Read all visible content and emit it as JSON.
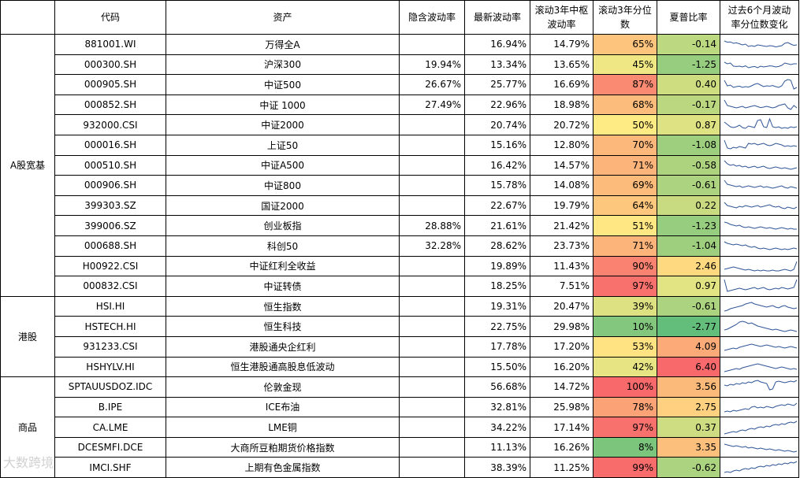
{
  "headers": {
    "group": "",
    "code": "代码",
    "name": "资产",
    "implied_vol": "隐含波动率",
    "latest_vol": "最新波动率",
    "median_vol": "滚动3年中枢波动率",
    "pct": "滚动3年分位数",
    "sharpe": "夏普比率",
    "trend": "过去6个月波动率分位数变化"
  },
  "groups": [
    {
      "name": "A股宽基",
      "rows": [
        {
          "code": "881001.WI",
          "name": "万得全A",
          "implied_vol": "",
          "latest_vol": "16.94%",
          "median_vol": "14.79%",
          "pct": "65%",
          "pct_value": 65,
          "sharpe": "-0.14",
          "sharpe_value": -0.14,
          "trend": [
            0.7,
            0.62,
            0.64,
            0.55,
            0.58,
            0.52,
            0.45,
            0.5,
            0.35,
            0.4,
            0.35,
            0.45,
            0.42,
            0.38,
            0.35,
            0.4,
            0.38,
            0.32,
            0.36,
            0.4,
            0.55,
            0.6,
            0.5,
            0.42,
            0.45
          ]
        },
        {
          "code": "000300.SH",
          "name": "沪深300",
          "implied_vol": "19.94%",
          "latest_vol": "13.34%",
          "median_vol": "13.65%",
          "pct": "45%",
          "pct_value": 45,
          "sharpe": "-1.25",
          "sharpe_value": -1.25,
          "trend": [
            0.65,
            0.55,
            0.6,
            0.4,
            0.38,
            0.4,
            0.35,
            0.42,
            0.3,
            0.35,
            0.38,
            0.3,
            0.4,
            0.35,
            0.38,
            0.42,
            0.4,
            0.35,
            0.38,
            0.45,
            0.6,
            0.55,
            0.5,
            0.55,
            0.55
          ]
        },
        {
          "code": "000905.SH",
          "name": "中证500",
          "implied_vol": "26.67%",
          "latest_vol": "25.77%",
          "median_vol": "16.69%",
          "pct": "87%",
          "pct_value": 87,
          "sharpe": "0.40",
          "sharpe_value": 0.4,
          "trend": [
            0.75,
            0.4,
            0.45,
            0.3,
            0.35,
            0.38,
            0.3,
            0.35,
            0.32,
            0.4,
            0.5,
            0.55,
            0.45,
            0.35,
            0.4,
            0.38,
            0.42,
            0.35,
            0.3,
            0.4,
            0.7,
            0.8,
            0.75,
            0.2,
            0.3
          ]
        },
        {
          "code": "000852.SH",
          "name": "中证 1000",
          "implied_vol": "27.49%",
          "latest_vol": "22.96%",
          "median_vol": "18.98%",
          "pct": "68%",
          "pct_value": 68,
          "sharpe": "-0.17",
          "sharpe_value": -0.17,
          "trend": [
            0.8,
            0.45,
            0.4,
            0.35,
            0.3,
            0.35,
            0.4,
            0.3,
            0.35,
            0.4,
            0.45,
            0.38,
            0.32,
            0.35,
            0.4,
            0.35,
            0.3,
            0.35,
            0.45,
            0.5,
            0.55,
            0.3,
            0.2,
            0.45,
            0.3
          ]
        },
        {
          "code": "932000.CSI",
          "name": "中证2000",
          "implied_vol": "",
          "latest_vol": "20.74%",
          "median_vol": "20.72%",
          "pct": "50%",
          "pct_value": 50,
          "sharpe": "0.87",
          "sharpe_value": 0.87,
          "trend": [
            0.7,
            0.55,
            0.4,
            0.35,
            0.4,
            0.5,
            0.35,
            0.3,
            0.45,
            0.4,
            0.35,
            0.8,
            0.85,
            0.4,
            0.35,
            0.9,
            0.4,
            0.35,
            0.4,
            0.3,
            0.35,
            0.3,
            0.4,
            0.35,
            0.4
          ]
        },
        {
          "code": "000016.SH",
          "name": "上证50",
          "implied_vol": "",
          "latest_vol": "15.16%",
          "median_vol": "12.80%",
          "pct": "70%",
          "pct_value": 70,
          "sharpe": "-1.08",
          "sharpe_value": -1.08,
          "trend": [
            0.8,
            0.3,
            0.25,
            0.35,
            0.3,
            0.4,
            0.35,
            0.3,
            0.6,
            0.55,
            0.6,
            0.5,
            0.55,
            0.6,
            0.5,
            0.45,
            0.5,
            0.6,
            0.55,
            0.5,
            0.4,
            0.45,
            0.4,
            0.45,
            0.4
          ]
        },
        {
          "code": "000510.SH",
          "name": "中证A500",
          "implied_vol": "",
          "latest_vol": "16.42%",
          "median_vol": "14.57%",
          "pct": "71%",
          "pct_value": 71,
          "sharpe": "-0.58",
          "sharpe_value": -0.58,
          "trend": [
            0.8,
            0.6,
            0.5,
            0.55,
            0.45,
            0.5,
            0.4,
            0.45,
            0.35,
            0.4,
            0.45,
            0.35,
            0.4,
            0.45,
            0.35,
            0.3,
            0.35,
            0.4,
            0.35,
            0.3,
            0.35,
            0.3,
            0.25,
            0.3,
            0.35
          ]
        },
        {
          "code": "000906.SH",
          "name": "中证800",
          "implied_vol": "",
          "latest_vol": "15.78%",
          "median_vol": "14.08%",
          "pct": "69%",
          "pct_value": 69,
          "sharpe": "-0.61",
          "sharpe_value": -0.61,
          "trend": [
            0.8,
            0.55,
            0.5,
            0.45,
            0.4,
            0.45,
            0.35,
            0.4,
            0.45,
            0.4,
            0.35,
            0.4,
            0.45,
            0.35,
            0.4,
            0.35,
            0.3,
            0.35,
            0.4,
            0.45,
            0.35,
            0.3,
            0.4,
            0.35,
            0.3
          ]
        },
        {
          "code": "399303.SZ",
          "name": "国证2000",
          "implied_vol": "",
          "latest_vol": "22.67%",
          "median_vol": "19.79%",
          "pct": "64%",
          "pct_value": 64,
          "sharpe": "0.22",
          "sharpe_value": 0.22,
          "trend": [
            0.7,
            0.5,
            0.45,
            0.4,
            0.35,
            0.45,
            0.4,
            0.5,
            0.45,
            0.4,
            0.45,
            0.5,
            0.4,
            0.45,
            0.5,
            0.55,
            0.45,
            0.4,
            0.45,
            0.35,
            0.3,
            0.4,
            0.35,
            0.3,
            0.4
          ]
        },
        {
          "code": "399006.SZ",
          "name": "创业板指",
          "implied_vol": "28.88%",
          "latest_vol": "21.61%",
          "median_vol": "21.42%",
          "pct": "51%",
          "pct_value": 51,
          "sharpe": "-1.23",
          "sharpe_value": -1.23,
          "trend": [
            0.75,
            0.7,
            0.6,
            0.55,
            0.5,
            0.55,
            0.45,
            0.4,
            0.45,
            0.4,
            0.35,
            0.4,
            0.45,
            0.4,
            0.35,
            0.4,
            0.35,
            0.3,
            0.35,
            0.4,
            0.35,
            0.3,
            0.35,
            0.3,
            0.3
          ]
        },
        {
          "code": "000688.SH",
          "name": "科创50",
          "implied_vol": "32.28%",
          "latest_vol": "28.62%",
          "median_vol": "23.73%",
          "pct": "71%",
          "pct_value": 71,
          "sharpe": "-1.04",
          "sharpe_value": -1.04,
          "trend": [
            0.75,
            0.65,
            0.6,
            0.55,
            0.6,
            0.55,
            0.5,
            0.55,
            0.45,
            0.4,
            0.45,
            0.35,
            0.3,
            0.35,
            0.3,
            0.25,
            0.3,
            0.35,
            0.3,
            0.25,
            0.3,
            0.25,
            0.3,
            0.35,
            0.3
          ]
        },
        {
          "code": "H00922.CSI",
          "name": "中证红利全收益",
          "implied_vol": "",
          "latest_vol": "19.89%",
          "median_vol": "11.43%",
          "pct": "90%",
          "pct_value": 90,
          "sharpe": "2.46",
          "sharpe_value": 2.46,
          "trend": [
            0.3,
            0.35,
            0.4,
            0.45,
            0.4,
            0.35,
            0.3,
            0.25,
            0.3,
            0.25,
            0.2,
            0.25,
            0.2,
            0.25,
            0.2,
            0.2,
            0.25,
            0.2,
            0.2,
            0.25,
            0.3,
            0.25,
            0.2,
            0.3,
            0.8
          ]
        },
        {
          "code": "000832.CSI",
          "name": "中证转债",
          "implied_vol": "",
          "latest_vol": "18.25%",
          "median_vol": "7.51%",
          "pct": "97%",
          "pct_value": 97,
          "sharpe": "0.97",
          "sharpe_value": 0.97,
          "trend": [
            0.9,
            0.15,
            0.2,
            0.25,
            0.3,
            0.35,
            0.3,
            0.25,
            0.3,
            0.35,
            0.4,
            0.3,
            0.35,
            0.4,
            0.3,
            0.25,
            0.3,
            0.35,
            0.3,
            0.4,
            0.35,
            0.3,
            0.35,
            0.4,
            0.9
          ]
        }
      ]
    },
    {
      "name": "港股",
      "rows": [
        {
          "code": "HSI.HI",
          "name": "恒生指数",
          "implied_vol": "",
          "latest_vol": "19.31%",
          "median_vol": "20.47%",
          "pct": "39%",
          "pct_value": 39,
          "sharpe": "-0.61",
          "sharpe_value": -0.61,
          "trend": [
            0.2,
            0.25,
            0.35,
            0.4,
            0.45,
            0.5,
            0.55,
            0.65,
            0.7,
            0.75,
            0.65,
            0.6,
            0.55,
            0.5,
            0.45,
            0.5,
            0.55,
            0.45,
            0.4,
            0.5,
            0.55,
            0.45,
            0.4,
            0.35,
            0.4
          ]
        },
        {
          "code": "HSTECH.HI",
          "name": "恒生科技",
          "implied_vol": "",
          "latest_vol": "22.75%",
          "median_vol": "29.98%",
          "pct": "10%",
          "pct_value": 10,
          "sharpe": "-2.77",
          "sharpe_value": -2.77,
          "trend": [
            0.3,
            0.35,
            0.45,
            0.55,
            0.65,
            0.8,
            0.85,
            0.8,
            0.7,
            0.75,
            0.65,
            0.55,
            0.5,
            0.45,
            0.4,
            0.35,
            0.3,
            0.35,
            0.3,
            0.25,
            0.2,
            0.25,
            0.3,
            0.25,
            0.2
          ]
        },
        {
          "code": "931233.CSI",
          "name": "港股通央企红利",
          "implied_vol": "",
          "latest_vol": "17.78%",
          "median_vol": "17.20%",
          "pct": "53%",
          "pct_value": 53,
          "sharpe": "4.09",
          "sharpe_value": 4.09,
          "trend": [
            0.25,
            0.3,
            0.35,
            0.4,
            0.35,
            0.45,
            0.5,
            0.55,
            0.6,
            0.65,
            0.6,
            0.55,
            0.5,
            0.55,
            0.6,
            0.55,
            0.5,
            0.45,
            0.5,
            0.45,
            0.4,
            0.45,
            0.5,
            0.45,
            0.4
          ]
        },
        {
          "code": "HSHYLV.HI",
          "name": "恒生港股通高股息低波动",
          "implied_vol": "",
          "latest_vol": "15.50%",
          "median_vol": "16.20%",
          "pct": "42%",
          "pct_value": 42,
          "sharpe": "6.40",
          "sharpe_value": 6.4,
          "trend": [
            0.2,
            0.25,
            0.3,
            0.35,
            0.4,
            0.35,
            0.45,
            0.5,
            0.55,
            0.6,
            0.65,
            0.7,
            0.65,
            0.6,
            0.55,
            0.5,
            0.45,
            0.4,
            0.45,
            0.5,
            0.45,
            0.4,
            0.35,
            0.4,
            0.35
          ]
        }
      ]
    },
    {
      "name": "商品",
      "rows": [
        {
          "code": "SPTAUUSDOZ.IDC",
          "name": "伦敦金现",
          "implied_vol": "",
          "latest_vol": "56.68%",
          "median_vol": "14.72%",
          "pct": "100%",
          "pct_value": 100,
          "sharpe": "3.56",
          "sharpe_value": 3.56,
          "trend": [
            0.6,
            0.55,
            0.65,
            0.6,
            0.7,
            0.65,
            0.75,
            0.7,
            0.8,
            0.75,
            0.85,
            0.9,
            0.8,
            0.75,
            0.7,
            0.3,
            0.35,
            0.8,
            0.85,
            0.8,
            0.75,
            0.8,
            0.85,
            0.8,
            0.9
          ]
        },
        {
          "code": "B.IPE",
          "name": "ICE布油",
          "implied_vol": "",
          "latest_vol": "32.81%",
          "median_vol": "25.98%",
          "pct": "78%",
          "pct_value": 78,
          "sharpe": "2.75",
          "sharpe_value": 2.75,
          "trend": [
            0.2,
            0.25,
            0.2,
            0.3,
            0.25,
            0.3,
            0.35,
            0.4,
            0.35,
            0.5,
            0.55,
            0.45,
            0.5,
            0.45,
            0.55,
            0.5,
            0.45,
            0.55,
            0.6,
            0.65,
            0.6,
            0.7,
            0.65,
            0.6,
            0.75
          ]
        },
        {
          "code": "CA.LME",
          "name": "LME铜",
          "implied_vol": "",
          "latest_vol": "34.22%",
          "median_vol": "17.14%",
          "pct": "97%",
          "pct_value": 97,
          "sharpe": "0.37",
          "sharpe_value": 0.37,
          "trend": [
            0.1,
            0.15,
            0.2,
            0.25,
            0.2,
            0.3,
            0.35,
            0.3,
            0.4,
            0.45,
            0.4,
            0.5,
            0.55,
            0.5,
            0.6,
            0.55,
            0.65,
            0.7,
            0.65,
            0.75,
            0.7,
            0.8,
            0.85,
            0.8,
            0.9
          ]
        },
        {
          "code": "DCESMFI.DCE",
          "name": "大商所豆粕期货价格指数",
          "implied_vol": "",
          "latest_vol": "11.13%",
          "median_vol": "16.26%",
          "pct": "8%",
          "pct_value": 8,
          "sharpe": "3.35",
          "sharpe_value": 3.35,
          "trend": [
            0.7,
            0.65,
            0.6,
            0.55,
            0.6,
            0.55,
            0.5,
            0.55,
            0.45,
            0.5,
            0.45,
            0.4,
            0.45,
            0.4,
            0.35,
            0.4,
            0.35,
            0.3,
            0.35,
            0.3,
            0.25,
            0.3,
            0.25,
            0.2,
            0.25
          ]
        },
        {
          "code": "IMCI.SHF",
          "name": "上期有色金属指数",
          "implied_vol": "",
          "latest_vol": "38.39%",
          "median_vol": "11.25%",
          "pct": "99%",
          "pct_value": 99,
          "sharpe": "-0.62",
          "sharpe_value": -0.62,
          "trend": [
            0.2,
            0.25,
            0.2,
            0.3,
            0.35,
            0.3,
            0.4,
            0.45,
            0.4,
            0.5,
            0.45,
            0.55,
            0.6,
            0.55,
            0.65,
            0.6,
            0.7,
            0.65,
            0.75,
            0.7,
            0.8,
            0.75,
            0.85,
            0.8,
            0.9
          ]
        }
      ]
    }
  ],
  "colors": {
    "green": "#63be7b",
    "yellow": "#ffeb84",
    "red": "#f8696b",
    "sparkline": "#2f5597"
  },
  "watermark": "大数跨境"
}
